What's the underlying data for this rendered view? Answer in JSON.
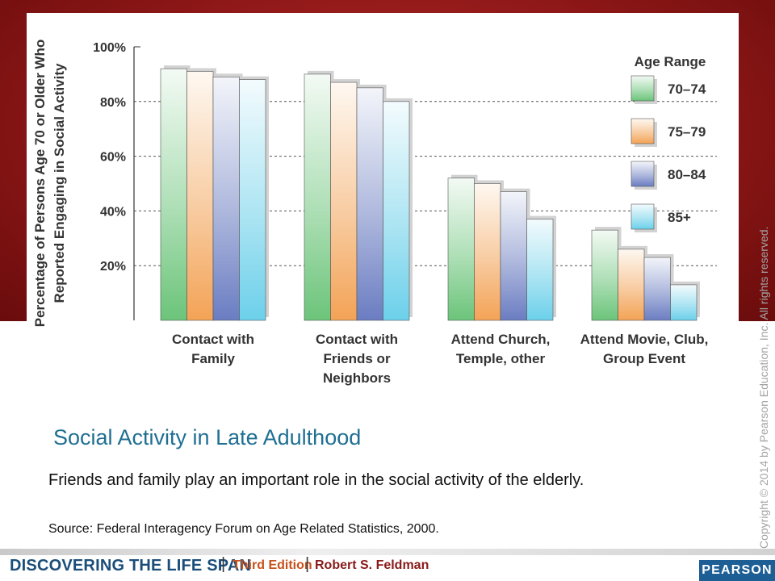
{
  "slide": {
    "title": "Social Activity in Late Adulthood",
    "caption": "Friends and family play an important role in the social activity of the elderly.",
    "source": "Source: Federal Interagency Forum on Age Related Statistics, 2000.",
    "copyright": "Copyright © 2014 by Pearson Education, Inc. All rights reserved.",
    "footer": {
      "book_title": "DISCOVERING THE LIFE SPAN",
      "separator": "|",
      "edition": "Third Edition",
      "author": "Robert S. Feldman",
      "publisher_logo": "PEARSON"
    }
  },
  "chart_data": {
    "type": "bar",
    "ylabel": "Percentage of Persons Age 70 or Older Who Reported Engaging in Social Activity",
    "ylabel_lines": [
      "Percentage of Persons Age 70 or Older Who",
      "Reported Engaging in Social Activity"
    ],
    "ylim": [
      0,
      100
    ],
    "yticks": [
      20,
      40,
      60,
      80,
      100
    ],
    "ytick_labels": [
      "20%",
      "40%",
      "60%",
      "80%",
      "100%"
    ],
    "grid": "dashed horizontal",
    "categories": [
      [
        "Contact with",
        "Family"
      ],
      [
        "Contact with",
        "Friends or",
        "Neighbors"
      ],
      [
        "Attend Church,",
        "Temple, other"
      ],
      [
        "Attend Movie, Club,",
        "Group Event"
      ]
    ],
    "legend_title": "Age Range",
    "legend_position": "right",
    "series": [
      {
        "name": "70–74",
        "values": [
          92,
          90,
          52,
          33
        ],
        "color": "#6cc47a"
      },
      {
        "name": "75–79",
        "values": [
          91,
          87,
          50,
          26
        ],
        "color": "#f3a356"
      },
      {
        "name": "80–84",
        "values": [
          89,
          85,
          47,
          23
        ],
        "color": "#6b7dc2"
      },
      {
        "name": "85+",
        "values": [
          88,
          80,
          37,
          13
        ],
        "color": "#6cd0ea"
      }
    ]
  }
}
